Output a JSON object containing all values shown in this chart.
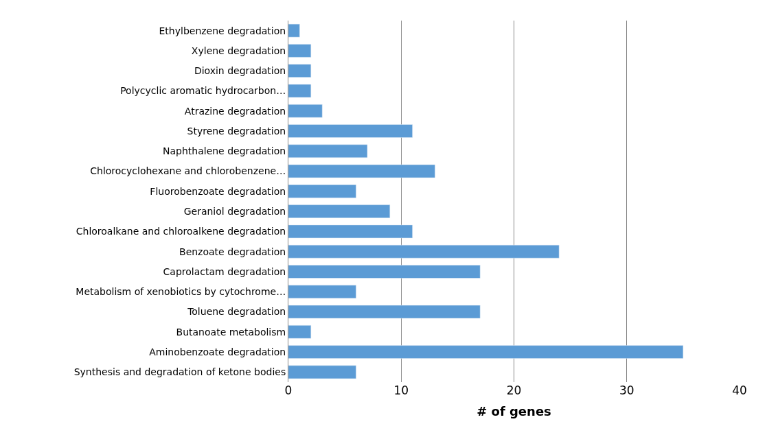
{
  "chart_data": {
    "type": "bar",
    "orientation": "horizontal",
    "xlabel": "# of genes",
    "categories": [
      "Ethylbenzene degradation",
      "Xylene degradation",
      "Dioxin degradation",
      "Polycyclic aromatic hydrocarbon…",
      "Atrazine degradation",
      "Styrene degradation",
      "Naphthalene degradation",
      "Chlorocyclohexane and chlorobenzene…",
      "Fluorobenzoate degradation",
      "Geraniol degradation",
      "Chloroalkane and chloroalkene degradation",
      "Benzoate degradation",
      "Caprolactam degradation",
      "Metabolism of xenobiotics by cytochrome…",
      "Toluene degradation",
      "Butanoate metabolism",
      "Aminobenzoate degradation",
      "Synthesis and degradation of ketone bodies"
    ],
    "values": [
      1,
      2,
      2,
      2,
      3,
      11,
      7,
      13,
      6,
      9,
      11,
      24,
      17,
      6,
      17,
      2,
      35,
      6
    ],
    "color": "#5b9bd5",
    "xlim": [
      0,
      40
    ],
    "xticks": [
      0,
      10,
      20,
      30,
      40
    ],
    "grid": "x"
  }
}
